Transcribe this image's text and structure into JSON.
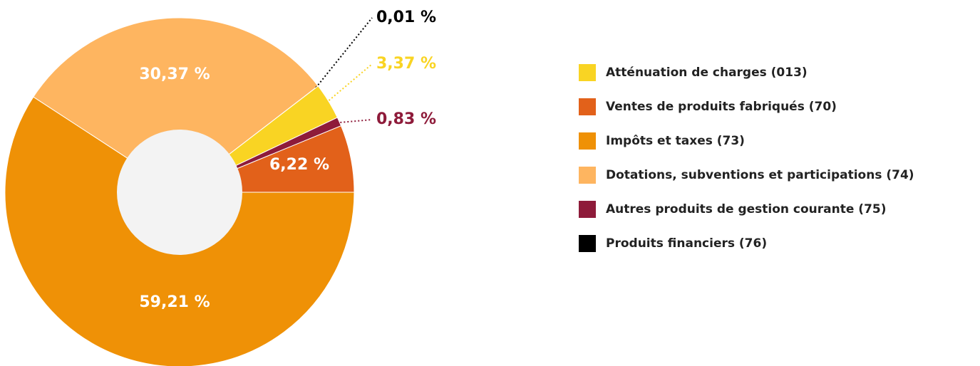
{
  "chart_data": {
    "type": "donut",
    "categories": [
      "Atténuation de charges (013)",
      "Ventes de produits fabriqués (70)",
      "Impôts et taxes (73)",
      "Dotations, subventions et participations (74)",
      "Autres produits de gestion courante (75)",
      "Produits financiers (76)"
    ],
    "values": [
      3.37,
      6.22,
      59.21,
      30.37,
      0.83,
      0.01
    ],
    "value_labels": [
      "3,37 %",
      "6,22 %",
      "59,21 %",
      "30,37 %",
      "0,83 %",
      "0,01 %"
    ],
    "colors": [
      "#f9d423",
      "#e2611a",
      "#ef9106",
      "#feb560",
      "#8e1b3a",
      "#000000"
    ],
    "legend": "right"
  }
}
